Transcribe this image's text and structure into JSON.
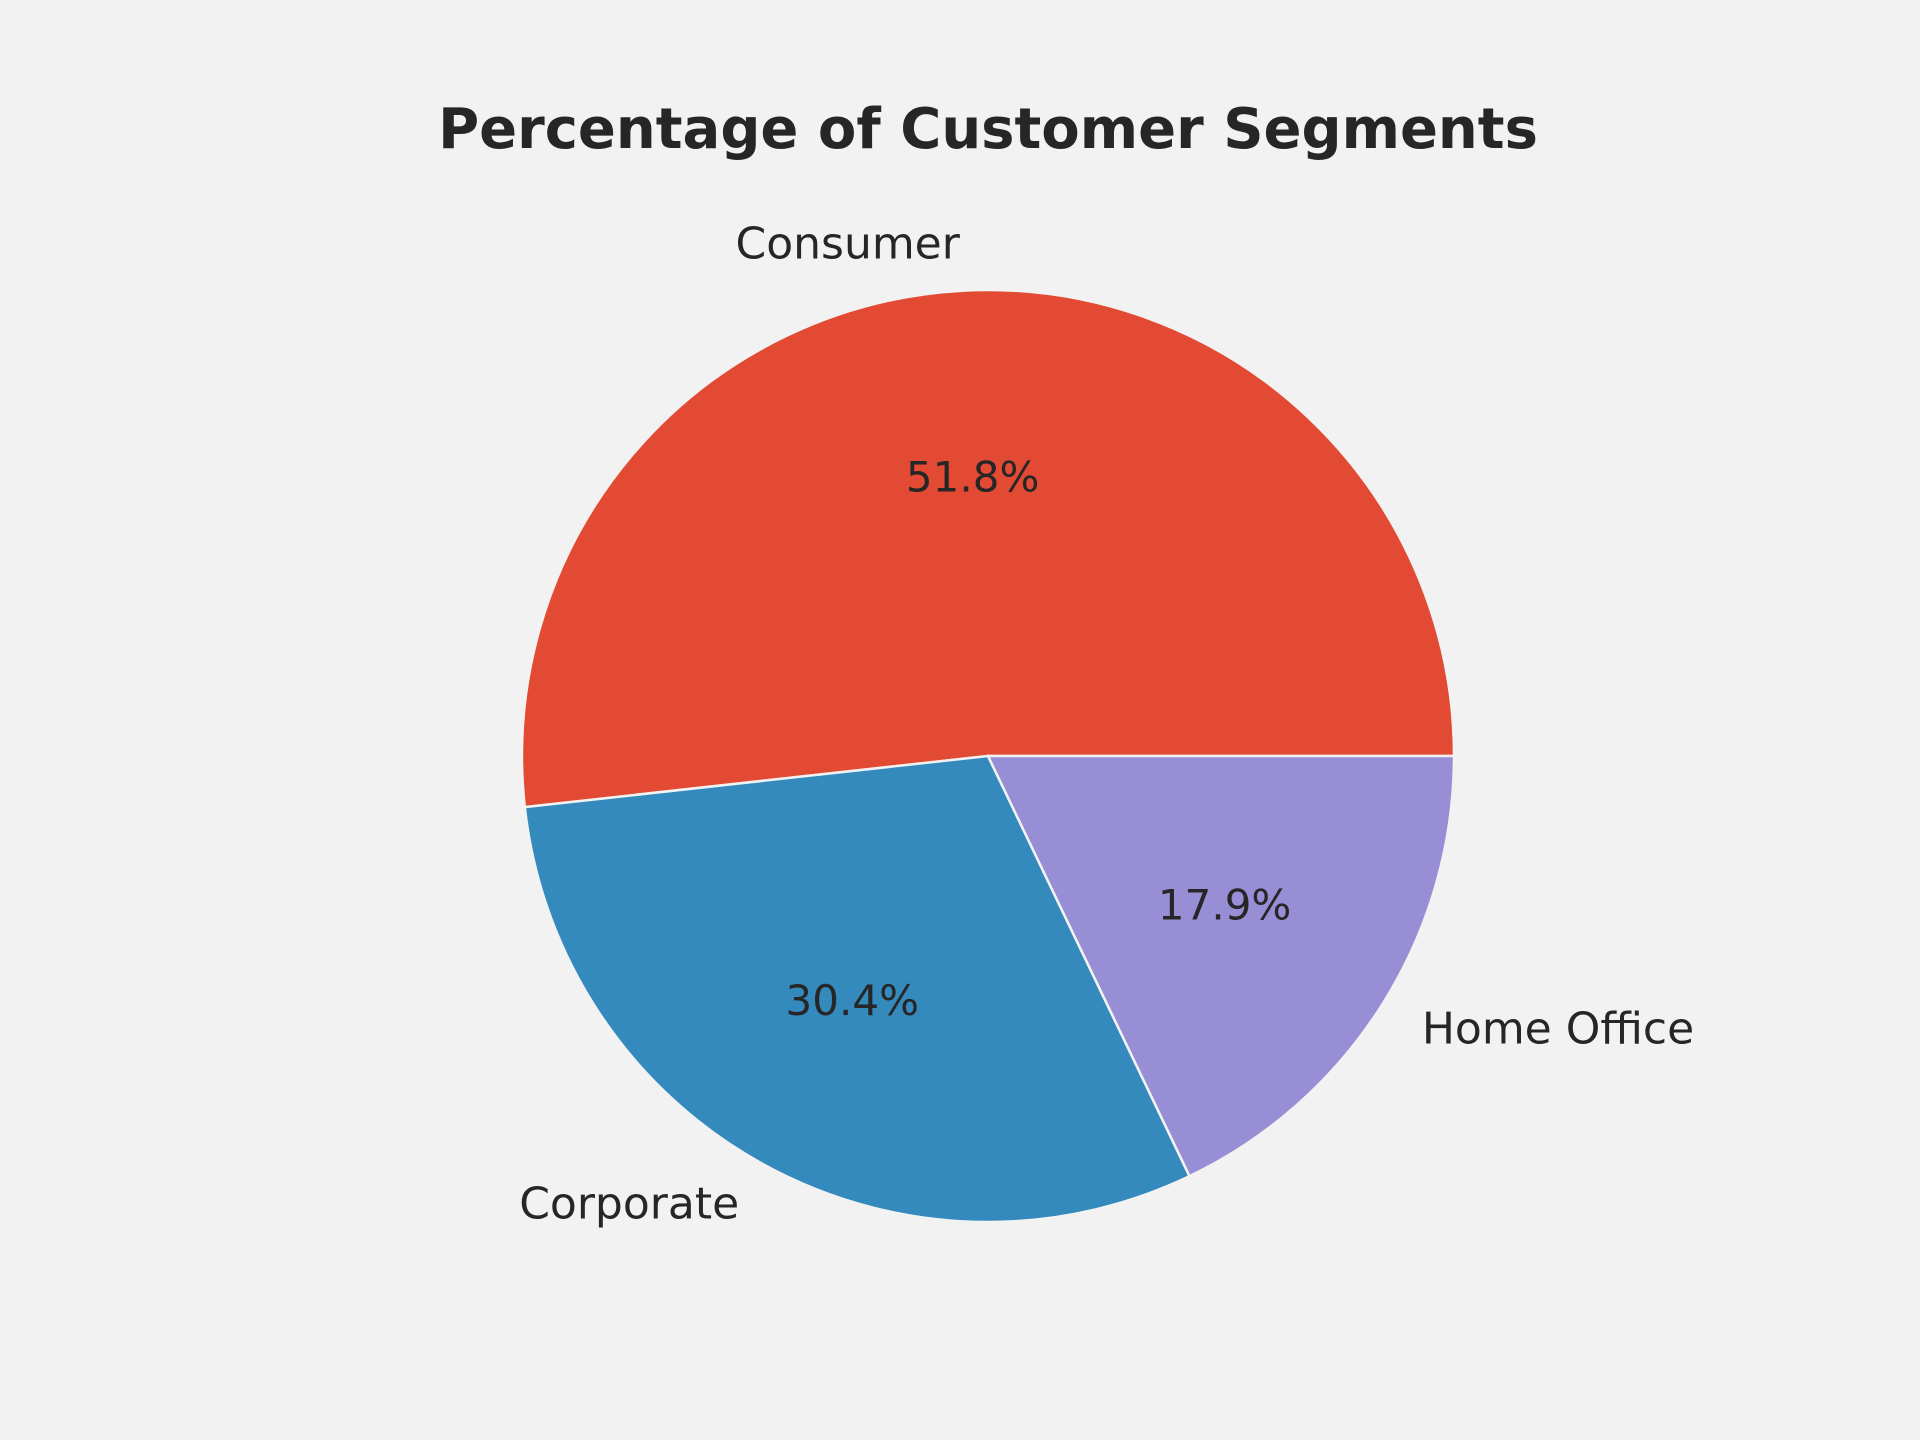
{
  "chart_data": {
    "type": "pie",
    "title": "Percentage of Customer Segments",
    "categories": [
      "Consumer",
      "Corporate",
      "Home Office"
    ],
    "values": [
      51.8,
      30.4,
      17.9
    ],
    "value_labels": [
      "51.8%",
      "30.4%",
      "17.9%"
    ],
    "colors": [
      "#e24a33",
      "#348abd",
      "#988ed5"
    ],
    "start_angle_deg": 0,
    "direction": "counterclockwise",
    "legend": "none"
  }
}
